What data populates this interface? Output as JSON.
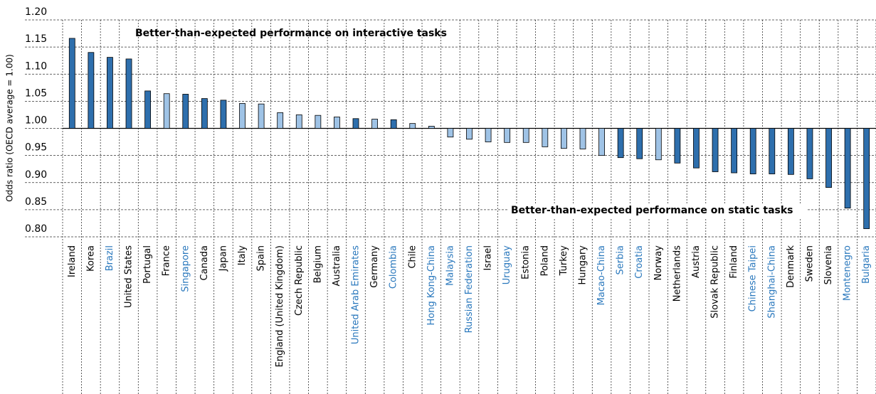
{
  "chart_data": {
    "type": "bar",
    "y_axis_label": "Odds ratio (OECD average = 1.00)",
    "annotations": [
      {
        "text": "Better-than-expected performance on ",
        "bold": "interactive tasks"
      },
      {
        "text": "Better-than-expected performance on ",
        "bold": "static tasks"
      }
    ],
    "categories": [
      "Ireland",
      "Korea",
      "Brazil",
      "United States",
      "Portugal",
      "France",
      "Singapore",
      "Canada",
      "Japan",
      "Italy",
      "Spain",
      "England (United Kingdom)",
      "Czech Republic",
      "Belgium",
      "Australia",
      "United Arab Emirates",
      "Germany",
      "Colombia",
      "Chile",
      "Hong Kong-China",
      "Malaysia",
      "Russian Federation",
      "Israel",
      "Uruguay",
      "Estonia",
      "Poland",
      "Turkey",
      "Hungary",
      "Macao-China",
      "Serbia",
      "Croatia",
      "Norway",
      "Netherlands",
      "Austria",
      "Slovak Republic",
      "Finland",
      "Chinese Taipei",
      "Shanghai-China",
      "Denmark",
      "Sweden",
      "Slovenia",
      "Montenegro",
      "Bulgaria"
    ],
    "values": [
      1.166,
      1.14,
      1.131,
      1.128,
      1.069,
      1.064,
      1.063,
      1.055,
      1.052,
      1.046,
      1.045,
      1.029,
      1.025,
      1.024,
      1.021,
      1.018,
      1.017,
      1.016,
      1.009,
      1.004,
      0.984,
      0.98,
      0.975,
      0.974,
      0.974,
      0.966,
      0.963,
      0.962,
      0.95,
      0.946,
      0.944,
      0.942,
      0.936,
      0.927,
      0.92,
      0.918,
      0.916,
      0.916,
      0.915,
      0.907,
      0.891,
      0.853,
      0.815
    ],
    "colors": [
      "#2e6fad",
      "#2e6fad",
      "#2e6fad",
      "#2e6fad",
      "#2e6fad",
      "#9fc3e6",
      "#2e6fad",
      "#2e6fad",
      "#2e6fad",
      "#9fc3e6",
      "#9fc3e6",
      "#9fc3e6",
      "#9fc3e6",
      "#9fc3e6",
      "#9fc3e6",
      "#2e6fad",
      "#9fc3e6",
      "#2e6fad",
      "#9fc3e6",
      "#9fc3e6",
      "#9fc3e6",
      "#9fc3e6",
      "#9fc3e6",
      "#9fc3e6",
      "#9fc3e6",
      "#9fc3e6",
      "#9fc3e6",
      "#9fc3e6",
      "#9fc3e6",
      "#2e6fad",
      "#2e6fad",
      "#9fc3e6",
      "#2e6fad",
      "#2e6fad",
      "#2e6fad",
      "#2e6fad",
      "#2e6fad",
      "#2e6fad",
      "#2e6fad",
      "#2e6fad",
      "#2e6fad",
      "#2e6fad",
      "#2e6fad"
    ],
    "label_colors": [
      "#000",
      "#000",
      "#2a78bd",
      "#000",
      "#000",
      "#000",
      "#2a78bd",
      "#000",
      "#000",
      "#000",
      "#000",
      "#000",
      "#000",
      "#000",
      "#000",
      "#2a78bd",
      "#000",
      "#2a78bd",
      "#000",
      "#2a78bd",
      "#2a78bd",
      "#2a78bd",
      "#000",
      "#2a78bd",
      "#000",
      "#000",
      "#000",
      "#000",
      "#2a78bd",
      "#2a78bd",
      "#2a78bd",
      "#000",
      "#000",
      "#000",
      "#000",
      "#000",
      "#2a78bd",
      "#2a78bd",
      "#000",
      "#000",
      "#000",
      "#2a78bd",
      "#2a78bd"
    ],
    "ylim": [
      0.8,
      1.2
    ],
    "yticks": [
      {
        "value": 0.8,
        "label": "0.80"
      },
      {
        "value": 0.85,
        "label": "0.85"
      },
      {
        "value": 0.9,
        "label": "0.90"
      },
      {
        "value": 0.95,
        "label": "0.95"
      },
      {
        "value": 1.0,
        "label": "1.00"
      },
      {
        "value": 1.05,
        "label": "1.05"
      },
      {
        "value": 1.1,
        "label": "1.10"
      },
      {
        "value": 1.15,
        "label": "1.15"
      },
      {
        "value": 1.2,
        "label": "1.20"
      }
    ],
    "baseline": 1.0,
    "grid": true
  }
}
